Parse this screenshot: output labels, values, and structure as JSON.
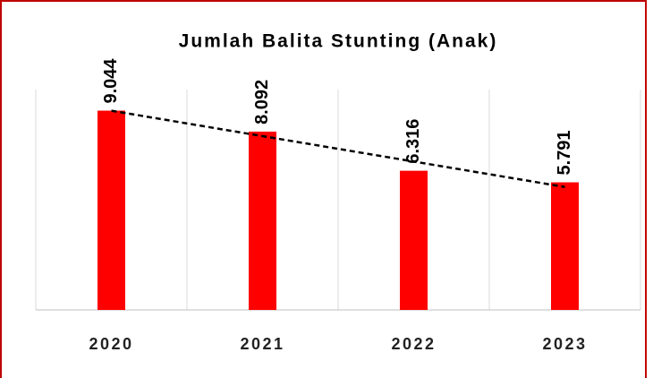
{
  "chart_data": {
    "type": "bar",
    "title": "Jumlah Balita Stunting (Anak)",
    "categories": [
      "2020",
      "2021",
      "2022",
      "2023"
    ],
    "values": [
      9044,
      8092,
      6316,
      5791
    ],
    "value_labels": [
      "9.044",
      "8.092",
      "6.316",
      "5.791"
    ],
    "color": "#ff0000",
    "ylim": [
      0,
      10000
    ],
    "trendline": "linear"
  }
}
